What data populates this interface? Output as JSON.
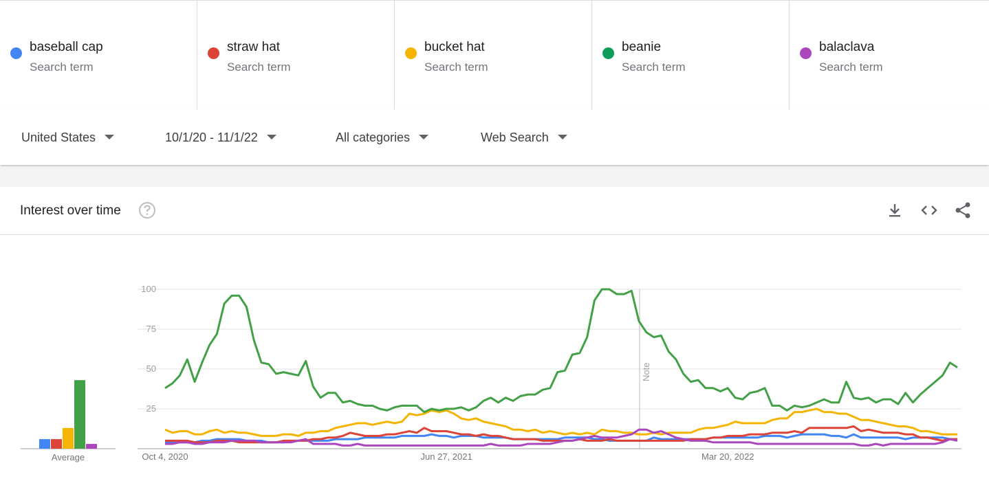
{
  "term_subtitle": "Search term",
  "filters": [
    "United States",
    "10/1/20 - 11/1/22",
    "All categories",
    "Web Search"
  ],
  "panel": {
    "title": "Interest over time"
  },
  "chart_data": {
    "type": "line",
    "categories": [
      "Oct 4, 2020",
      null,
      null,
      null,
      null,
      null,
      null,
      null,
      null,
      null,
      null,
      null,
      null,
      null,
      null,
      null,
      null,
      null,
      null,
      null,
      null,
      null,
      null,
      null,
      null,
      null,
      null,
      null,
      null,
      null,
      null,
      null,
      null,
      null,
      null,
      null,
      null,
      null,
      "Jun 27, 2021",
      null,
      null,
      null,
      null,
      null,
      null,
      null,
      null,
      null,
      null,
      null,
      null,
      null,
      null,
      null,
      null,
      null,
      null,
      null,
      null,
      null,
      null,
      null,
      null,
      null,
      null,
      null,
      null,
      null,
      null,
      null,
      null,
      null,
      null,
      null,
      null,
      null,
      "Mar 20, 2022",
      null,
      null,
      null,
      null,
      null,
      null,
      null,
      null,
      null,
      null,
      null,
      null,
      null,
      null,
      null,
      null,
      null,
      null,
      null,
      null,
      null,
      null,
      null,
      null,
      null,
      null,
      null,
      null,
      null,
      null,
      null
    ],
    "series": [
      {
        "name": "baseball cap",
        "color": "#4285f4",
        "values": [
          4,
          4,
          4,
          4,
          4,
          5,
          5,
          6,
          6,
          6,
          6,
          5,
          5,
          5,
          4,
          4,
          4,
          5,
          5,
          5,
          5,
          5,
          5,
          6,
          6,
          6,
          6,
          7,
          7,
          7,
          7,
          7,
          8,
          8,
          8,
          8,
          9,
          8,
          8,
          7,
          8,
          8,
          8,
          7,
          7,
          7,
          7,
          6,
          6,
          6,
          6,
          6,
          6,
          6,
          7,
          7,
          7,
          7,
          6,
          6,
          5,
          5,
          5,
          5,
          5,
          5,
          7,
          6,
          6,
          6,
          6,
          6,
          6,
          6,
          7,
          7,
          7,
          7,
          7,
          7,
          7,
          8,
          8,
          8,
          7,
          8,
          9,
          9,
          9,
          9,
          8,
          8,
          7,
          9,
          7,
          7,
          7,
          7,
          7,
          7,
          6,
          7,
          7,
          7,
          7,
          7,
          6,
          6
        ]
      },
      {
        "name": "straw hat",
        "color": "#db4437",
        "values": [
          5,
          5,
          5,
          5,
          4,
          4,
          4,
          5,
          5,
          5,
          4,
          4,
          4,
          4,
          4,
          4,
          5,
          5,
          5,
          5,
          6,
          6,
          7,
          7,
          8,
          10,
          9,
          8,
          8,
          8,
          9,
          9,
          10,
          11,
          10,
          13,
          11,
          11,
          11,
          10,
          9,
          9,
          8,
          9,
          8,
          8,
          7,
          6,
          6,
          6,
          6,
          5,
          5,
          5,
          5,
          5,
          6,
          5,
          5,
          5,
          6,
          5,
          5,
          5,
          5,
          5,
          5,
          5,
          5,
          5,
          5,
          6,
          6,
          6,
          7,
          7,
          8,
          8,
          8,
          9,
          9,
          9,
          10,
          10,
          10,
          11,
          10,
          13,
          13,
          13,
          13,
          13,
          13,
          14,
          11,
          12,
          11,
          10,
          10,
          10,
          9,
          9,
          7,
          7,
          6,
          5,
          6,
          6
        ]
      },
      {
        "name": "bucket hat",
        "color": "#f4b400",
        "values": [
          12,
          10,
          11,
          11,
          9,
          9,
          11,
          12,
          10,
          11,
          10,
          10,
          9,
          8,
          8,
          8,
          9,
          9,
          8,
          10,
          10,
          11,
          11,
          13,
          14,
          15,
          16,
          16,
          15,
          16,
          17,
          16,
          17,
          22,
          21,
          22,
          24,
          23,
          24,
          22,
          19,
          18,
          19,
          17,
          16,
          15,
          14,
          12,
          12,
          11,
          12,
          10,
          11,
          10,
          9,
          10,
          9,
          10,
          9,
          12,
          11,
          11,
          10,
          10,
          9,
          9,
          10,
          9,
          10,
          10,
          10,
          10,
          12,
          13,
          13,
          14,
          15,
          17,
          16,
          16,
          16,
          16,
          18,
          19,
          19,
          23,
          23,
          24,
          25,
          23,
          23,
          22,
          22,
          20,
          18,
          18,
          17,
          16,
          15,
          14,
          14,
          13,
          11,
          11,
          10,
          9,
          9,
          9
        ]
      },
      {
        "name": "beanie",
        "color": "#0f9d58",
        "values": [
          38,
          41,
          46,
          56,
          42,
          54,
          65,
          72,
          91,
          96,
          96,
          89,
          68,
          54,
          53,
          47,
          48,
          47,
          46,
          55,
          39,
          32,
          35,
          35,
          29,
          30,
          28,
          27,
          27,
          25,
          24,
          26,
          27,
          27,
          27,
          23,
          25,
          24,
          25,
          25,
          26,
          24,
          26,
          30,
          32,
          29,
          32,
          30,
          33,
          34,
          34,
          37,
          38,
          48,
          49,
          59,
          60,
          70,
          93,
          100,
          100,
          97,
          97,
          99,
          80,
          73,
          70,
          71,
          61,
          56,
          47,
          42,
          43,
          38,
          38,
          36,
          38,
          32,
          31,
          35,
          36,
          38,
          27,
          27,
          24,
          27,
          26,
          27,
          29,
          31,
          29,
          29,
          42,
          32,
          31,
          32,
          29,
          31,
          31,
          28,
          35,
          29,
          34,
          38,
          42,
          46,
          54,
          51
        ]
      },
      {
        "name": "balaclava",
        "color": "#ab47bc",
        "values": [
          3,
          3,
          4,
          4,
          3,
          3,
          4,
          4,
          4,
          5,
          5,
          5,
          5,
          4,
          4,
          4,
          4,
          4,
          5,
          6,
          3,
          3,
          3,
          3,
          2,
          2,
          3,
          2,
          2,
          2,
          2,
          2,
          2,
          2,
          2,
          2,
          2,
          2,
          2,
          2,
          2,
          2,
          2,
          2,
          3,
          2,
          2,
          2,
          2,
          3,
          3,
          3,
          3,
          4,
          5,
          5,
          6,
          7,
          8,
          7,
          7,
          7,
          8,
          9,
          12,
          12,
          10,
          11,
          9,
          7,
          6,
          5,
          5,
          5,
          4,
          4,
          4,
          4,
          4,
          4,
          3,
          3,
          3,
          3,
          3,
          3,
          3,
          3,
          3,
          3,
          3,
          3,
          3,
          3,
          2,
          2,
          3,
          2,
          3,
          3,
          3,
          3,
          3,
          3,
          3,
          4,
          6,
          5
        ]
      }
    ],
    "ylim": [
      0,
      100
    ],
    "yticks": [
      25,
      50,
      75,
      100
    ],
    "grid": true,
    "note": "Note",
    "average_label": "Average",
    "averages": [
      6,
      6,
      13,
      43,
      3
    ]
  }
}
